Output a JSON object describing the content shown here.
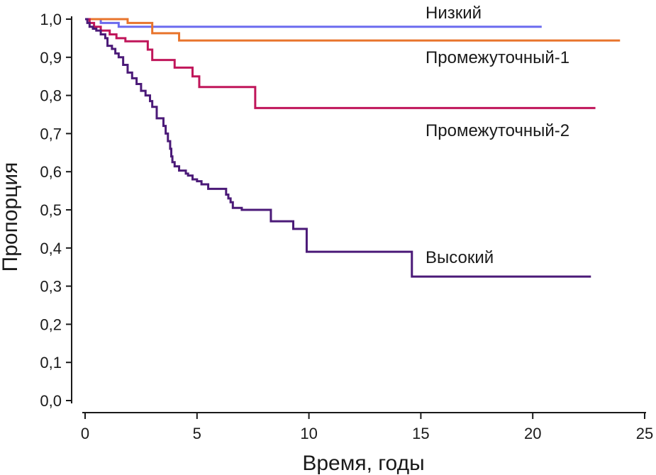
{
  "chart_data": {
    "type": "line",
    "step": true,
    "title": "",
    "xlabel": "Время, годы",
    "ylabel": "Пропорция",
    "xlim": [
      0,
      25
    ],
    "ylim": [
      0,
      1
    ],
    "x_ticks": [
      0,
      5,
      10,
      15,
      20,
      25
    ],
    "x_tick_labels": [
      "0",
      "5",
      "10",
      "15",
      "20",
      "25"
    ],
    "y_ticks": [
      0,
      0.1,
      0.2,
      0.3,
      0.4,
      0.5,
      0.6,
      0.7,
      0.8,
      0.9,
      1.0
    ],
    "y_tick_labels": [
      "0,0",
      "0,1",
      "0,2",
      "0,3",
      "0,4",
      "0,5",
      "0,6",
      "0,7",
      "0,8",
      "0,9",
      "1,0"
    ],
    "series": [
      {
        "name": "Низкий",
        "color": "#6b6bef",
        "x": [
          0,
          0.7,
          1.5,
          20.4
        ],
        "y": [
          1.0,
          0.99,
          0.98,
          0.98
        ]
      },
      {
        "name": "Промежуточный-1",
        "color": "#e8742c",
        "x": [
          0,
          1.9,
          3.0,
          4.2,
          23.9
        ],
        "y": [
          1.0,
          0.99,
          0.963,
          0.944,
          0.944
        ]
      },
      {
        "name": "Промежуточный-2",
        "color": "#c0165a",
        "x": [
          0,
          0.2,
          0.4,
          0.7,
          1.1,
          1.4,
          1.8,
          2.8,
          3.0,
          4.0,
          4.8,
          5.1,
          7.6,
          22.8
        ],
        "y": [
          1.0,
          0.99,
          0.98,
          0.97,
          0.96,
          0.95,
          0.942,
          0.92,
          0.893,
          0.873,
          0.85,
          0.822,
          0.767,
          0.767
        ]
      },
      {
        "name": "Высокий",
        "color": "#4b1a78",
        "x": [
          0,
          0.1,
          0.2,
          0.35,
          0.5,
          0.7,
          0.9,
          1.0,
          1.2,
          1.35,
          1.5,
          1.7,
          1.9,
          2.1,
          2.3,
          2.5,
          2.7,
          2.9,
          3.0,
          3.2,
          3.5,
          3.6,
          3.7,
          3.8,
          3.85,
          3.9,
          4.0,
          4.2,
          4.5,
          4.6,
          4.8,
          5.0,
          5.2,
          5.5,
          6.3,
          6.4,
          6.5,
          6.6,
          7.0,
          8.3,
          9.3,
          9.9,
          14.6,
          22.6
        ],
        "y": [
          1.0,
          0.99,
          0.98,
          0.975,
          0.97,
          0.96,
          0.95,
          0.93,
          0.922,
          0.91,
          0.9,
          0.88,
          0.86,
          0.845,
          0.83,
          0.812,
          0.8,
          0.785,
          0.77,
          0.74,
          0.72,
          0.7,
          0.68,
          0.66,
          0.64,
          0.625,
          0.614,
          0.603,
          0.595,
          0.59,
          0.58,
          0.575,
          0.567,
          0.555,
          0.54,
          0.53,
          0.52,
          0.505,
          0.5,
          0.47,
          0.45,
          0.39,
          0.325,
          0.325
        ]
      }
    ],
    "annotations": [
      {
        "series": "Низкий",
        "text": "Низкий"
      },
      {
        "series": "Промежуточный-1",
        "text": "Промежуточный-1"
      },
      {
        "series": "Промежуточный-2",
        "text": "Промежуточный-2"
      },
      {
        "series": "Высокий",
        "text": "Высокий"
      }
    ]
  }
}
